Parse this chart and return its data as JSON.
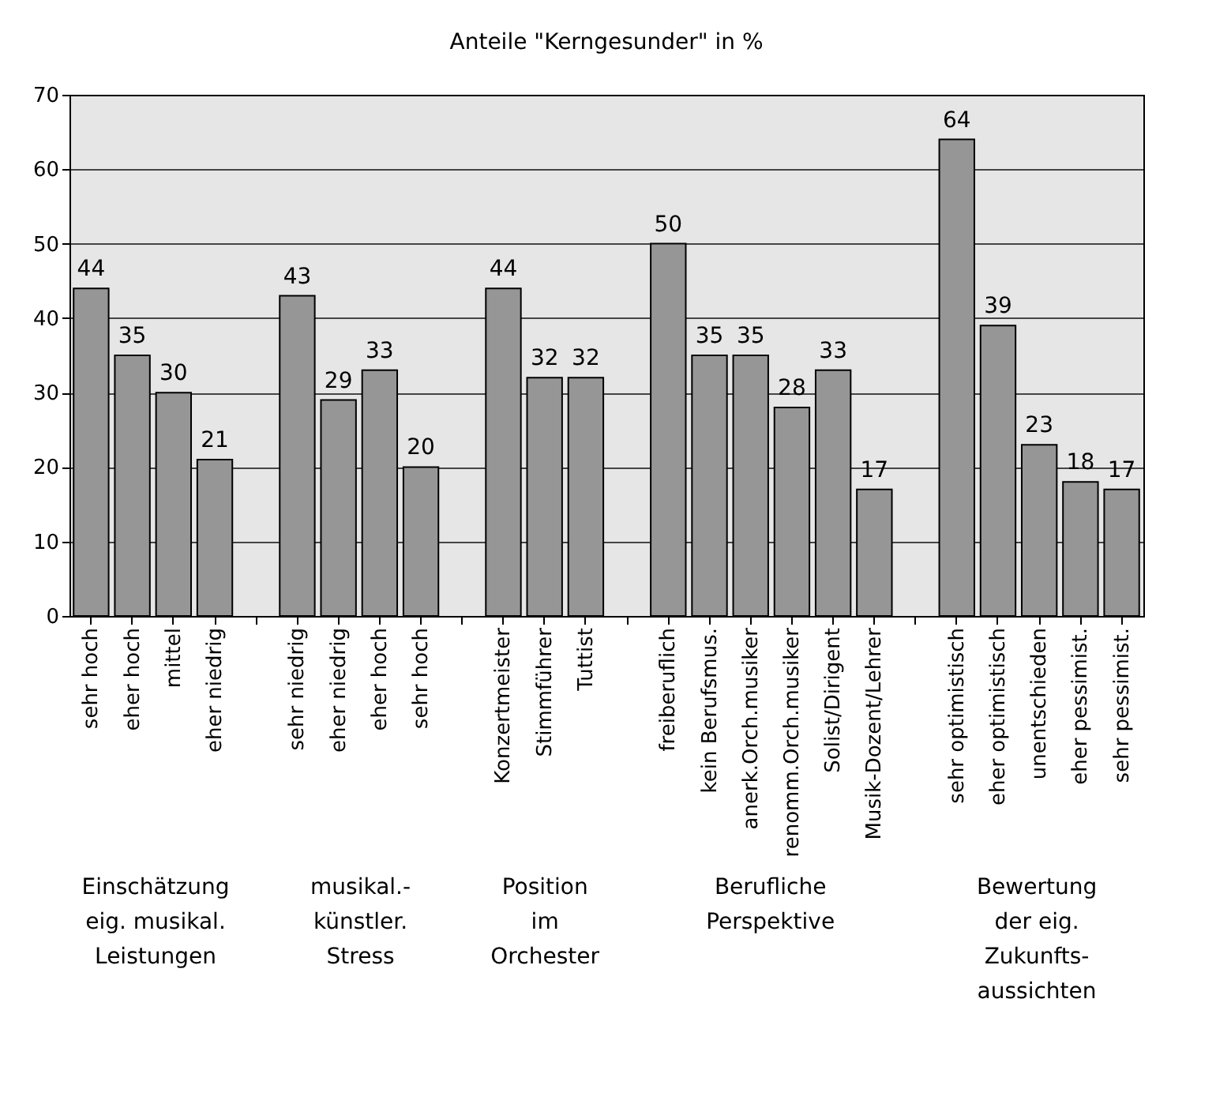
{
  "chart_data": {
    "type": "bar",
    "title": "Anteile \"Kerngesunder\" in %",
    "categories": [
      "sehr hoch",
      "eher hoch",
      "mittel",
      "eher niedrig",
      null,
      "sehr niedrig",
      "eher niedrig",
      "eher hoch",
      "sehr hoch",
      null,
      "Konzertmeister",
      "Stimmführer",
      "Tuttist",
      null,
      "freiberuflich",
      "kein Berufsmus.",
      "anerk.Orch.musiker",
      "renomm.Orch.musiker",
      "Solist/Dirigent",
      "Musik-Dozent/Lehrer",
      null,
      "sehr optimistisch",
      "eher optimistisch",
      "unentschieden",
      "eher pessimist.",
      "sehr pessimist."
    ],
    "values": [
      44,
      35,
      30,
      21,
      null,
      43,
      29,
      33,
      20,
      null,
      44,
      32,
      32,
      null,
      50,
      35,
      35,
      28,
      33,
      17,
      null,
      64,
      39,
      23,
      18,
      17
    ],
    "color": "#969696",
    "ylim": [
      0,
      70
    ],
    "yticks": [
      0,
      10,
      20,
      30,
      40,
      50,
      60,
      70
    ],
    "grid": "y",
    "data_labels": true,
    "annotations": [
      "Einschätzung\neig. musikal.\nLeistungen",
      "musikal.-\nkünstler.\nStress",
      "Position\nim\nOrchester",
      "Berufliche\nPerspektive",
      "Bewertung\nder eig.\nZukunfts-\naussichten"
    ]
  }
}
